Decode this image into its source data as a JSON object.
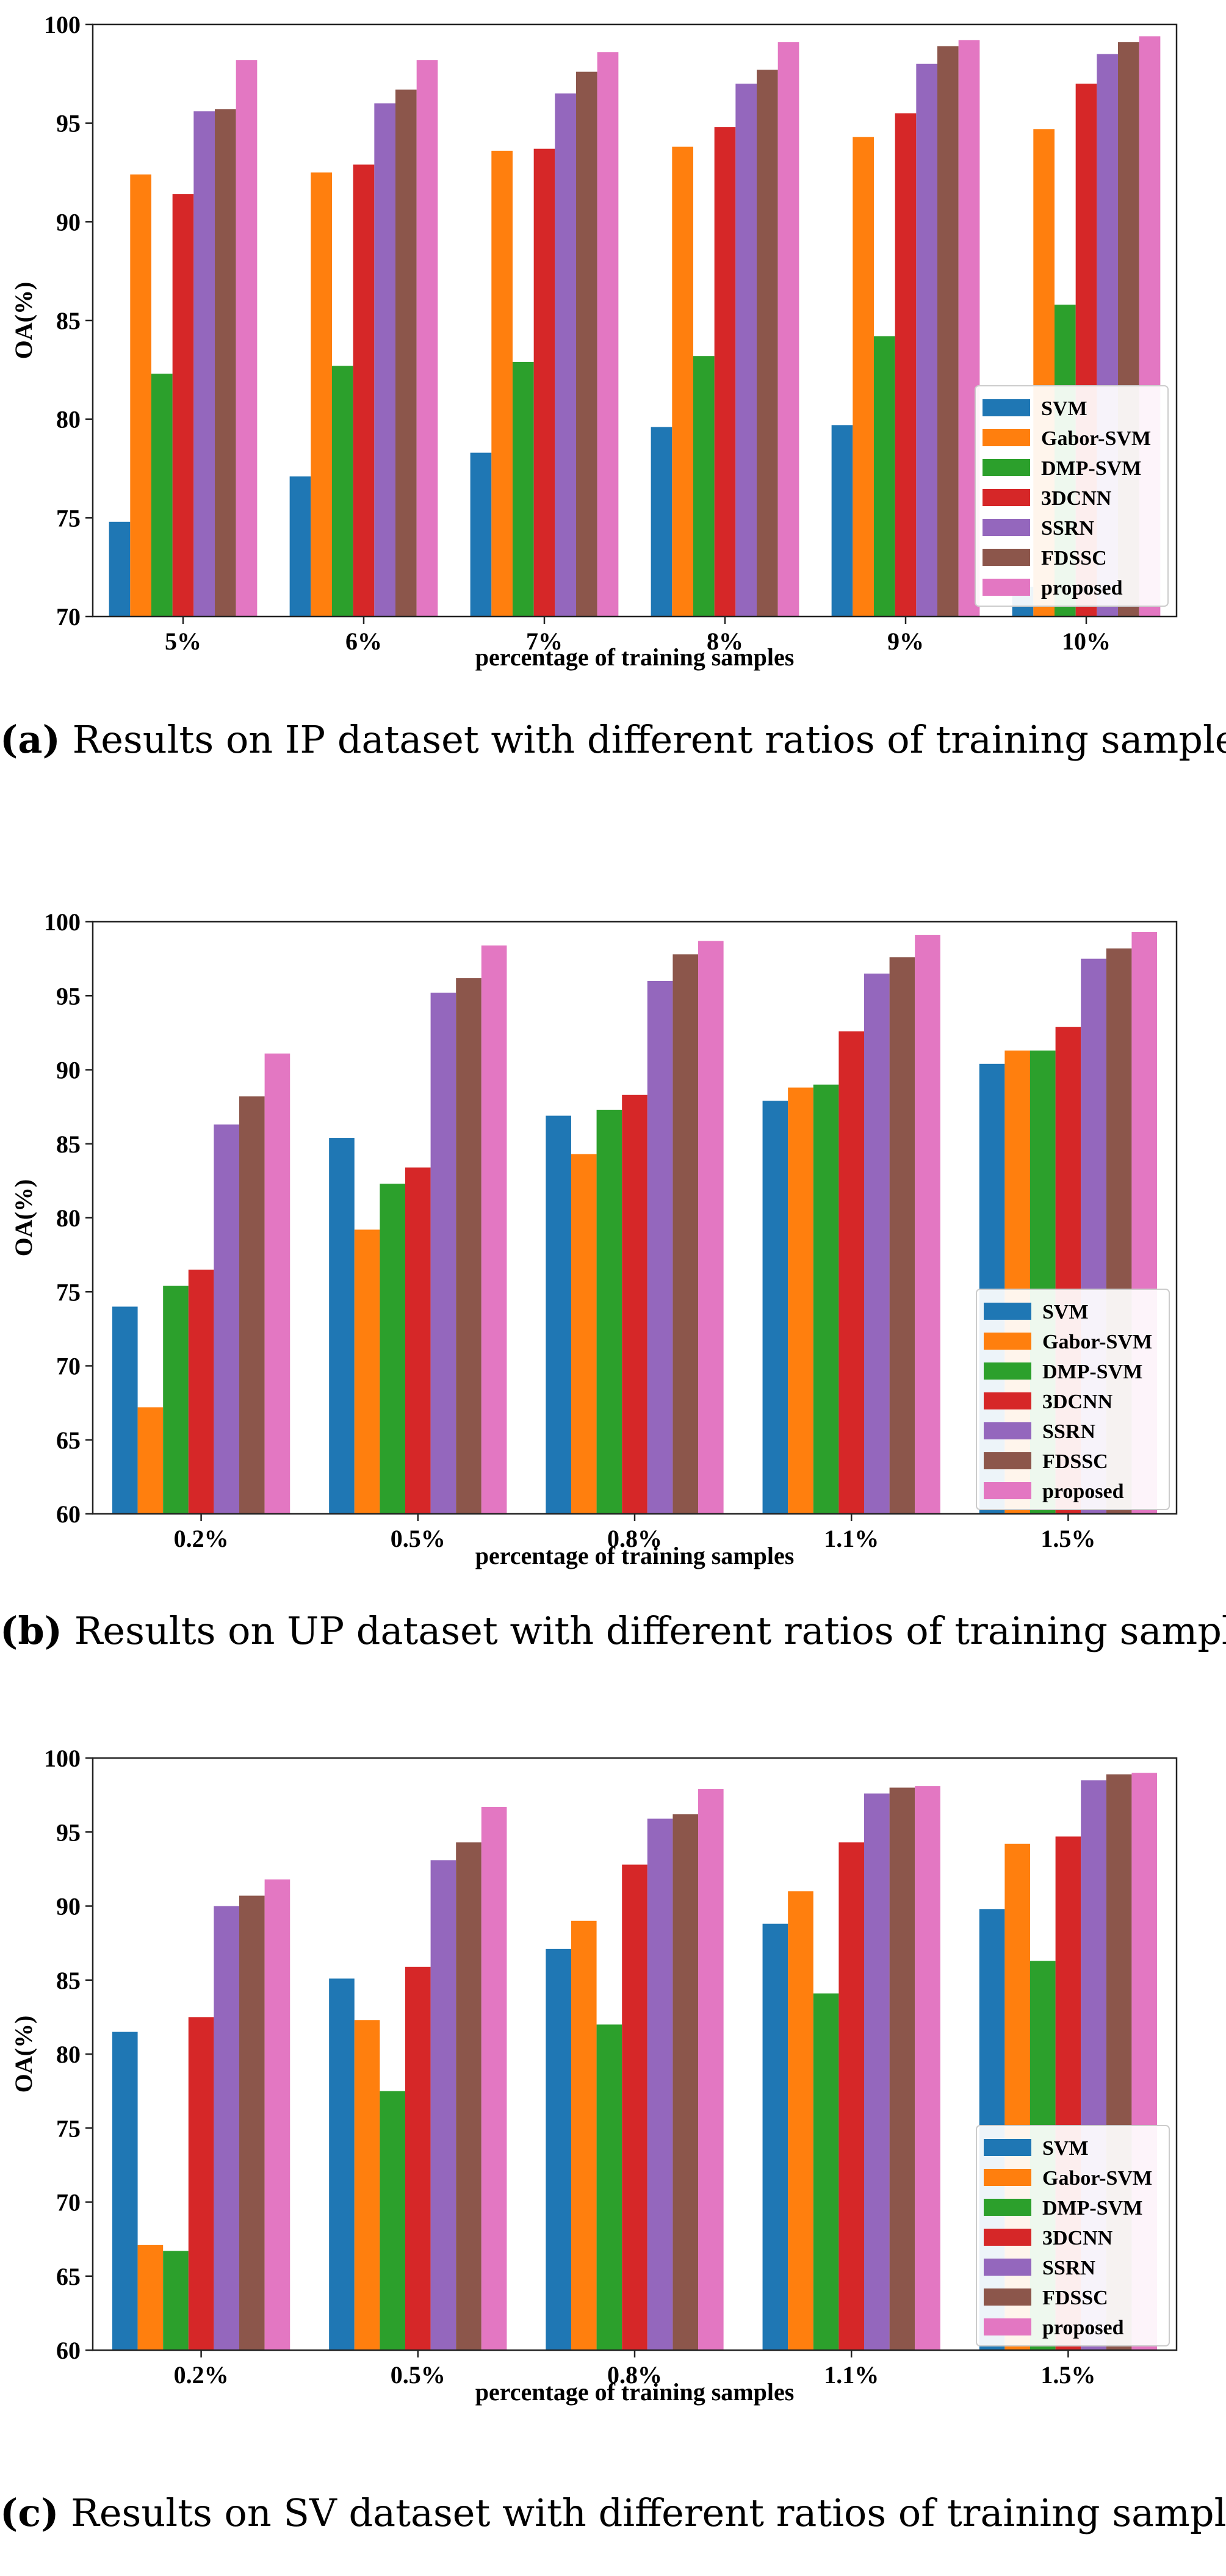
{
  "series_colors": [
    "#1f77b4",
    "#ff7f0e",
    "#2ca02c",
    "#d62728",
    "#9467bd",
    "#8c564b",
    "#e377c2"
  ],
  "chart_data": [
    {
      "id": "a",
      "type": "bar",
      "title": "",
      "xlabel": "percentage of training samples",
      "ylabel": "OA(%)",
      "ylim": [
        70,
        100
      ],
      "yticks": [
        70,
        75,
        80,
        85,
        90,
        95,
        100
      ],
      "categories": [
        "5%",
        "6%",
        "7%",
        "8%",
        "9%",
        "10%"
      ],
      "legend_position": "lower-right",
      "series": [
        {
          "name": "SVM",
          "values": [
            74.8,
            77.1,
            78.3,
            79.6,
            79.7,
            71.5
          ]
        },
        {
          "name": "Gabor-SVM",
          "values": [
            92.4,
            92.5,
            93.6,
            93.8,
            94.3,
            94.7
          ]
        },
        {
          "name": "DMP-SVM",
          "values": [
            82.3,
            82.7,
            82.9,
            83.2,
            84.2,
            85.8
          ]
        },
        {
          "name": "3DCNN",
          "values": [
            91.4,
            92.9,
            93.7,
            94.8,
            95.5,
            97.0
          ]
        },
        {
          "name": "SSRN",
          "values": [
            95.6,
            96.0,
            96.5,
            97.0,
            98.0,
            98.5
          ]
        },
        {
          "name": "FDSSC",
          "values": [
            95.7,
            96.7,
            97.6,
            97.7,
            98.9,
            99.1
          ]
        },
        {
          "name": "proposed",
          "values": [
            98.2,
            98.2,
            98.6,
            99.1,
            99.2,
            99.4
          ]
        }
      ],
      "caption_tag": "(a)",
      "caption": "Results on IP dataset with different ratios of training samples"
    },
    {
      "id": "b",
      "type": "bar",
      "title": "",
      "xlabel": "percentage of training samples",
      "ylabel": "OA(%)",
      "ylim": [
        60,
        100
      ],
      "yticks": [
        60,
        65,
        70,
        75,
        80,
        85,
        90,
        95,
        100
      ],
      "categories": [
        "0.2%",
        "0.5%",
        "0.8%",
        "1.1%",
        "1.5%"
      ],
      "legend_position": "lower-right",
      "series": [
        {
          "name": "SVM",
          "values": [
            74.0,
            85.4,
            86.9,
            87.9,
            90.4
          ]
        },
        {
          "name": "Gabor-SVM",
          "values": [
            67.2,
            79.2,
            84.3,
            88.8,
            91.3
          ]
        },
        {
          "name": "DMP-SVM",
          "values": [
            75.4,
            82.3,
            87.3,
            89.0,
            91.3
          ]
        },
        {
          "name": "3DCNN",
          "values": [
            76.5,
            83.4,
            88.3,
            92.6,
            92.9
          ]
        },
        {
          "name": "SSRN",
          "values": [
            86.3,
            95.2,
            96.0,
            96.5,
            97.5
          ]
        },
        {
          "name": "FDSSC",
          "values": [
            88.2,
            96.2,
            97.8,
            97.6,
            98.2
          ]
        },
        {
          "name": "proposed",
          "values": [
            91.1,
            98.4,
            98.7,
            99.1,
            99.3
          ]
        }
      ],
      "caption_tag": "(b)",
      "caption": "Results on UP dataset with different ratios of training samples"
    },
    {
      "id": "c",
      "type": "bar",
      "title": "",
      "xlabel": "percentage of training samples",
      "ylabel": "OA(%)",
      "ylim": [
        60,
        100
      ],
      "yticks": [
        60,
        65,
        70,
        75,
        80,
        85,
        90,
        95,
        100
      ],
      "categories": [
        "0.2%",
        "0.5%",
        "0.8%",
        "1.1%",
        "1.5%"
      ],
      "legend_position": "lower-right",
      "series": [
        {
          "name": "SVM",
          "values": [
            81.5,
            85.1,
            87.1,
            88.8,
            89.8
          ]
        },
        {
          "name": "Gabor-SVM",
          "values": [
            67.1,
            82.3,
            89.0,
            91.0,
            94.2
          ]
        },
        {
          "name": "DMP-SVM",
          "values": [
            66.7,
            77.5,
            82.0,
            84.1,
            86.3
          ]
        },
        {
          "name": "3DCNN",
          "values": [
            82.5,
            85.9,
            92.8,
            94.3,
            94.7
          ]
        },
        {
          "name": "SSRN",
          "values": [
            90.0,
            93.1,
            95.9,
            97.6,
            98.5
          ]
        },
        {
          "name": "FDSSC",
          "values": [
            90.7,
            94.3,
            96.2,
            98.0,
            98.9
          ]
        },
        {
          "name": "proposed",
          "values": [
            91.8,
            96.7,
            97.9,
            98.1,
            99.0
          ]
        }
      ],
      "caption_tag": "(c)",
      "caption": "Results on SV dataset with different ratios of training samples"
    }
  ]
}
